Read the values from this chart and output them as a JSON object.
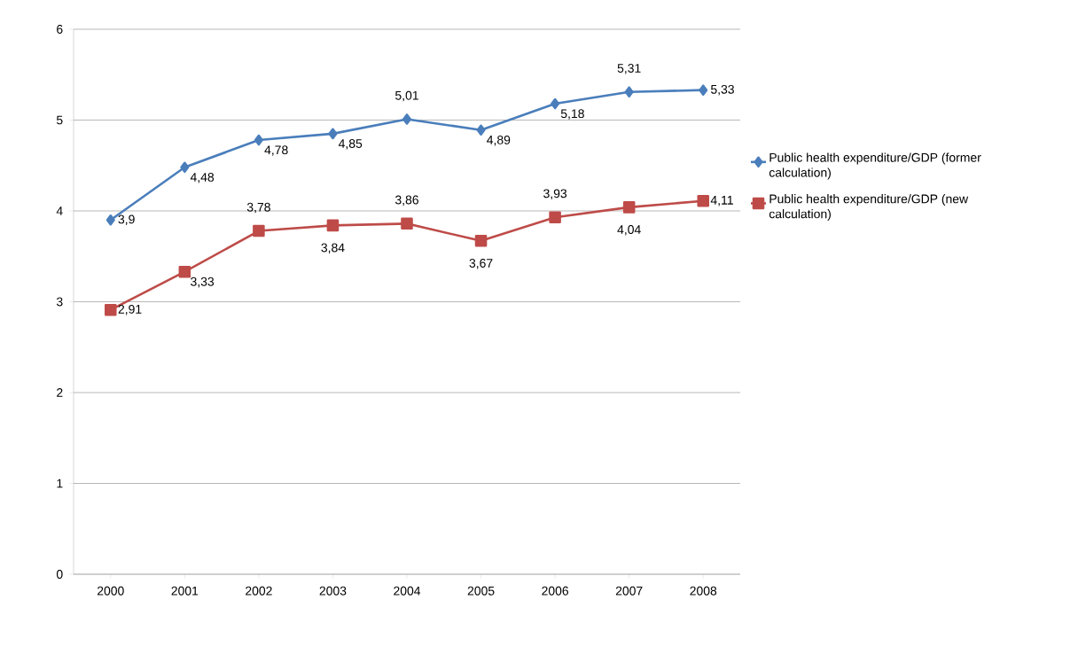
{
  "chart_data": {
    "type": "line",
    "categories": [
      "2000",
      "2001",
      "2002",
      "2003",
      "2004",
      "2005",
      "2006",
      "2007",
      "2008"
    ],
    "series": [
      {
        "name": "Public health expenditure/GDP (former calculation)",
        "color": "#4a7ebb",
        "marker": "diamond",
        "values": [
          3.9,
          4.48,
          4.78,
          4.85,
          5.01,
          4.89,
          5.18,
          5.31,
          5.33
        ],
        "value_labels": [
          "3,9",
          "4,48",
          "4,78",
          "4,85",
          "5,01",
          "4,89",
          "5,18",
          "5,31",
          "5,33"
        ]
      },
      {
        "name": "Public health expenditure/GDP (new calculation)",
        "color": "#be4b48",
        "marker": "square",
        "values": [
          2.91,
          3.33,
          3.78,
          3.84,
          3.86,
          3.67,
          3.93,
          4.04,
          4.11
        ],
        "value_labels": [
          "2,91",
          "3,33",
          "3,78",
          "3,84",
          "3,86",
          "3,67",
          "3,93",
          "4,04",
          "4,11"
        ]
      }
    ],
    "ylim": [
      0,
      6
    ],
    "yticks": [
      0,
      1,
      2,
      3,
      4,
      5,
      6
    ],
    "grid": "y",
    "legend": "right",
    "line_style": "solid"
  }
}
